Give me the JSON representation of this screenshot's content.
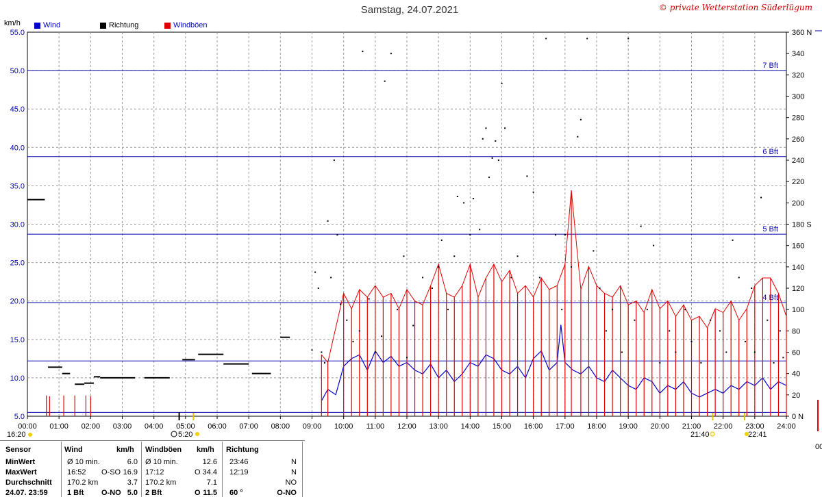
{
  "header": {
    "title": "Samstag, 24.07.2021",
    "credit": "© private Wetterstation Süderlügum",
    "unit_left": "km/h"
  },
  "legend": [
    {
      "label": "Wind",
      "color": "#0000cc",
      "text_color": "#0000cc"
    },
    {
      "label": "Richtung",
      "color": "#000000",
      "text_color": "#000000"
    },
    {
      "label": "Windböen",
      "color": "#e00000",
      "text_color": "#0000cc"
    }
  ],
  "chart_data": {
    "type": "line",
    "x_range": [
      "00:00",
      "24:00"
    ],
    "x_ticks": [
      "00:00",
      "01:00",
      "02:00",
      "03:00",
      "04:00",
      "05:00",
      "06:00",
      "07:00",
      "08:00",
      "09:00",
      "10:00",
      "11:00",
      "12:00",
      "13:00",
      "14:00",
      "15:00",
      "16:00",
      "17:00",
      "18:00",
      "19:00",
      "20:00",
      "21:00",
      "22:00",
      "23:00",
      "24:00"
    ],
    "y_left": {
      "unit": "km/h",
      "min": 5.0,
      "max": 55.0,
      "ticks": [
        "5.0",
        "10.0",
        "15.0",
        "20.0",
        "25.0",
        "30.0",
        "35.0",
        "40.0",
        "45.0",
        "50.0",
        "55.0"
      ]
    },
    "y_right": {
      "min": 0,
      "max": 360,
      "ticks": [
        "0 N",
        "20",
        "40",
        "60",
        "80",
        "100",
        "120",
        "140",
        "160",
        "180 S",
        "200",
        "220",
        "240",
        "260",
        "280",
        "300",
        "320",
        "340",
        "360 N"
      ]
    },
    "beaufort_lines": [
      {
        "label": "",
        "value": 5.5
      },
      {
        "label": "",
        "value": 12.2
      },
      {
        "label": "4 Bft",
        "value": 19.8
      },
      {
        "label": "5 Bft",
        "value": 28.7
      },
      {
        "label": "6 Bft",
        "value": 38.8
      },
      {
        "label": "7 Bft",
        "value": 50.0
      }
    ],
    "series": [
      {
        "name": "Wind",
        "color": "#0000cc",
        "style": "line",
        "x_hours": [
          9.3,
          9.5,
          9.75,
          10.0,
          10.25,
          10.5,
          10.75,
          11.0,
          11.25,
          11.5,
          11.75,
          12.0,
          12.25,
          12.5,
          12.75,
          13.0,
          13.25,
          13.5,
          13.75,
          14.0,
          14.25,
          14.5,
          14.75,
          15.0,
          15.25,
          15.5,
          15.75,
          16.0,
          16.25,
          16.5,
          16.75,
          16.87,
          17.0,
          17.25,
          17.5,
          17.75,
          18.0,
          18.25,
          18.5,
          18.75,
          19.0,
          19.25,
          19.5,
          19.75,
          20.0,
          20.25,
          20.5,
          20.75,
          21.0,
          21.25,
          21.5,
          21.75,
          22.0,
          22.25,
          22.5,
          22.75,
          23.0,
          23.25,
          23.5,
          23.75,
          24.0
        ],
        "values": [
          7.0,
          8.5,
          7.8,
          11.5,
          12.5,
          13.0,
          11.0,
          13.5,
          12.0,
          12.8,
          11.5,
          12.0,
          11.0,
          10.5,
          11.8,
          10.0,
          11.0,
          9.5,
          10.5,
          12.0,
          11.5,
          13.0,
          12.5,
          11.0,
          10.5,
          11.5,
          10.0,
          12.5,
          13.5,
          11.0,
          12.0,
          16.9,
          12.0,
          11.0,
          10.5,
          11.5,
          10.0,
          9.5,
          11.0,
          10.0,
          9.0,
          8.5,
          10.0,
          9.5,
          8.0,
          9.0,
          8.5,
          9.5,
          8.0,
          7.5,
          8.0,
          8.5,
          8.0,
          9.0,
          8.5,
          9.5,
          9.0,
          10.0,
          8.5,
          9.5,
          9.0
        ]
      },
      {
        "name": "Windböen",
        "color": "#e00000",
        "style": "spikes",
        "x_hours": [
          0.6,
          0.7,
          1.15,
          1.5,
          1.85,
          2.0,
          9.3,
          9.5,
          10.0,
          10.25,
          10.5,
          10.75,
          11.0,
          11.25,
          11.5,
          11.75,
          12.0,
          12.25,
          12.5,
          12.75,
          13.0,
          13.25,
          13.5,
          13.75,
          14.0,
          14.25,
          14.5,
          14.75,
          15.0,
          15.25,
          15.5,
          15.75,
          16.0,
          16.25,
          16.5,
          16.75,
          17.0,
          17.2,
          17.5,
          17.75,
          18.0,
          18.25,
          18.5,
          18.75,
          19.0,
          19.25,
          19.5,
          19.75,
          20.0,
          20.25,
          20.5,
          20.75,
          21.0,
          21.25,
          21.5,
          21.75,
          22.0,
          22.25,
          22.5,
          22.75,
          23.0,
          23.25,
          23.5,
          23.75,
          24.0
        ],
        "values": [
          7.7,
          7.6,
          7.7,
          7.7,
          7.7,
          7.6,
          13.0,
          12.0,
          21.0,
          19.0,
          21.5,
          20.5,
          22.0,
          20.5,
          21.0,
          19.0,
          21.5,
          20.0,
          19.5,
          22.0,
          24.8,
          21.0,
          20.5,
          22.0,
          24.8,
          20.5,
          23.0,
          24.8,
          22.5,
          24.0,
          21.0,
          22.0,
          20.5,
          23.0,
          21.5,
          22.0,
          24.8,
          34.4,
          21.5,
          24.5,
          22.0,
          21.0,
          20.5,
          22.0,
          19.5,
          20.0,
          18.5,
          21.5,
          19.0,
          20.0,
          18.0,
          19.5,
          17.5,
          18.0,
          16.5,
          19.0,
          18.5,
          20.0,
          17.5,
          19.0,
          22.0,
          23.0,
          23.0,
          21.0,
          18.0
        ]
      },
      {
        "name": "Richtung",
        "color": "#000000",
        "style": "dots",
        "axis": "right",
        "segments": [
          {
            "x_hours": [
              0.0,
              0.55
            ],
            "value": 203
          },
          {
            "x_hours": [
              0.65,
              1.1
            ],
            "value": 46
          },
          {
            "x_hours": [
              1.1,
              1.35
            ],
            "value": 40
          },
          {
            "x_hours": [
              1.5,
              1.8
            ],
            "value": 30
          },
          {
            "x_hours": [
              1.8,
              2.1
            ],
            "value": 31
          },
          {
            "x_hours": [
              2.1,
              2.3
            ],
            "value": 37
          },
          {
            "x_hours": [
              2.3,
              3.4
            ],
            "value": 36
          },
          {
            "x_hours": [
              3.7,
              4.5
            ],
            "value": 36
          },
          {
            "x_hours": [
              4.9,
              5.3
            ],
            "value": 53
          },
          {
            "x_hours": [
              5.4,
              6.2
            ],
            "value": 58
          },
          {
            "x_hours": [
              6.2,
              7.0
            ],
            "value": 49
          },
          {
            "x_hours": [
              7.1,
              7.7
            ],
            "value": 40
          },
          {
            "x_hours": [
              8.0,
              8.3
            ],
            "value": 74
          }
        ],
        "scatter": [
          {
            "x": 9.0,
            "y": 62
          },
          {
            "x": 9.1,
            "y": 135
          },
          {
            "x": 9.2,
            "y": 120
          },
          {
            "x": 9.3,
            "y": 60
          },
          {
            "x": 9.4,
            "y": 50
          },
          {
            "x": 9.5,
            "y": 183
          },
          {
            "x": 9.6,
            "y": 130
          },
          {
            "x": 9.7,
            "y": 240
          },
          {
            "x": 9.8,
            "y": 170
          },
          {
            "x": 9.9,
            "y": 105
          },
          {
            "x": 10.1,
            "y": 90
          },
          {
            "x": 10.3,
            "y": 70
          },
          {
            "x": 10.5,
            "y": 80
          },
          {
            "x": 10.6,
            "y": 342
          },
          {
            "x": 10.8,
            "y": 110
          },
          {
            "x": 11.0,
            "y": 60
          },
          {
            "x": 11.2,
            "y": 75
          },
          {
            "x": 11.3,
            "y": 314
          },
          {
            "x": 11.5,
            "y": 340
          },
          {
            "x": 11.7,
            "y": 100
          },
          {
            "x": 11.9,
            "y": 150
          },
          {
            "x": 12.0,
            "y": 55
          },
          {
            "x": 12.2,
            "y": 85
          },
          {
            "x": 12.5,
            "y": 130
          },
          {
            "x": 12.8,
            "y": 120
          },
          {
            "x": 13.0,
            "y": 140
          },
          {
            "x": 13.1,
            "y": 165
          },
          {
            "x": 13.3,
            "y": 100
          },
          {
            "x": 13.5,
            "y": 150
          },
          {
            "x": 13.6,
            "y": 206
          },
          {
            "x": 13.8,
            "y": 200
          },
          {
            "x": 14.0,
            "y": 170
          },
          {
            "x": 14.1,
            "y": 204
          },
          {
            "x": 14.3,
            "y": 175
          },
          {
            "x": 14.4,
            "y": 260
          },
          {
            "x": 14.5,
            "y": 270
          },
          {
            "x": 14.6,
            "y": 224
          },
          {
            "x": 14.7,
            "y": 242
          },
          {
            "x": 14.8,
            "y": 258
          },
          {
            "x": 14.9,
            "y": 240
          },
          {
            "x": 15.0,
            "y": 312
          },
          {
            "x": 15.1,
            "y": 270
          },
          {
            "x": 15.3,
            "y": 130
          },
          {
            "x": 15.5,
            "y": 150
          },
          {
            "x": 15.8,
            "y": 225
          },
          {
            "x": 16.0,
            "y": 210
          },
          {
            "x": 16.2,
            "y": 130
          },
          {
            "x": 16.4,
            "y": 354
          },
          {
            "x": 16.7,
            "y": 170
          },
          {
            "x": 16.9,
            "y": 100
          },
          {
            "x": 17.0,
            "y": 170
          },
          {
            "x": 17.2,
            "y": 140
          },
          {
            "x": 17.4,
            "y": 262
          },
          {
            "x": 17.5,
            "y": 278
          },
          {
            "x": 17.7,
            "y": 354
          },
          {
            "x": 17.9,
            "y": 155
          },
          {
            "x": 18.1,
            "y": 120
          },
          {
            "x": 18.3,
            "y": 80
          },
          {
            "x": 18.5,
            "y": 100
          },
          {
            "x": 18.8,
            "y": 60
          },
          {
            "x": 19.0,
            "y": 354
          },
          {
            "x": 19.2,
            "y": 90
          },
          {
            "x": 19.4,
            "y": 178
          },
          {
            "x": 19.6,
            "y": 100
          },
          {
            "x": 19.8,
            "y": 160
          },
          {
            "x": 20.0,
            "y": 50
          },
          {
            "x": 20.3,
            "y": 80
          },
          {
            "x": 20.5,
            "y": 60
          },
          {
            "x": 20.8,
            "y": 100
          },
          {
            "x": 21.0,
            "y": 70
          },
          {
            "x": 21.3,
            "y": 50
          },
          {
            "x": 21.6,
            "y": 90
          },
          {
            "x": 21.9,
            "y": 80
          },
          {
            "x": 22.1,
            "y": 60
          },
          {
            "x": 22.3,
            "y": 165
          },
          {
            "x": 22.5,
            "y": 130
          },
          {
            "x": 22.7,
            "y": 70
          },
          {
            "x": 22.9,
            "y": 120
          },
          {
            "x": 23.0,
            "y": 60
          },
          {
            "x": 23.2,
            "y": 205
          },
          {
            "x": 23.4,
            "y": 90
          },
          {
            "x": 23.6,
            "y": 50
          },
          {
            "x": 23.8,
            "y": 80
          },
          {
            "x": 23.9,
            "y": 55
          }
        ]
      }
    ],
    "markers": [
      {
        "x": 4.8,
        "kind": "pole"
      },
      {
        "x": 5.25,
        "kind": "sun"
      },
      {
        "x": 21.67,
        "kind": "sun"
      },
      {
        "x": 22.68,
        "kind": "sun"
      }
    ]
  },
  "footer": {
    "left_time": "16:20",
    "sunrise": "5:20",
    "sunset": "21:40",
    "moon": "22:41",
    "tick_labels": [
      "00:00",
      "01:00",
      "02:00",
      "03:00",
      "04:00",
      "05:00",
      "06:00",
      "07:00",
      "08:00",
      "09:00",
      "10:00",
      "11:00",
      "12:00",
      "13:00",
      "14:00",
      "15:00",
      "16:00",
      "17:00",
      "18:00",
      "19:00",
      "20:00",
      "21:00",
      "22:00",
      "23:00",
      "24:00"
    ]
  },
  "stats": {
    "headers": {
      "sensor": "Sensor",
      "wind": "Wind",
      "wind_unit": "km/h",
      "gust": "Windböen",
      "gust_unit": "km/h",
      "dir": "Richtung"
    },
    "rows": [
      {
        "label": "MinWert",
        "wind_a": "Ø 10 min.",
        "wind_b": "",
        "wind_v": "6.0",
        "gust_a": "Ø 10 min.",
        "gust_b": "",
        "gust_v": "12.6",
        "dir_t": "23:46",
        "dir_v": "N"
      },
      {
        "label": "MaxWert",
        "wind_a": "16:52",
        "wind_b": "O-SO",
        "wind_v": "16.9",
        "gust_a": "17:12",
        "gust_b": "O",
        "gust_v": "34.4",
        "dir_t": "12:19",
        "dir_v": "N"
      },
      {
        "label": "Durchschnitt",
        "wind_a": "170.2 km",
        "wind_b": "",
        "wind_v": "3.7",
        "gust_a": "170.2 km",
        "gust_b": "",
        "gust_v": "7.1",
        "dir_t": "",
        "dir_v": "NO"
      },
      {
        "label": "24.07. 23:59",
        "wind_a": "1 Bft",
        "wind_b": "O-NO",
        "wind_v": "5.0",
        "gust_a": "2 Bft",
        "gust_b": "O",
        "gust_v": "11.5",
        "dir_t": "60 °",
        "dir_v": "O-NO"
      }
    ]
  }
}
